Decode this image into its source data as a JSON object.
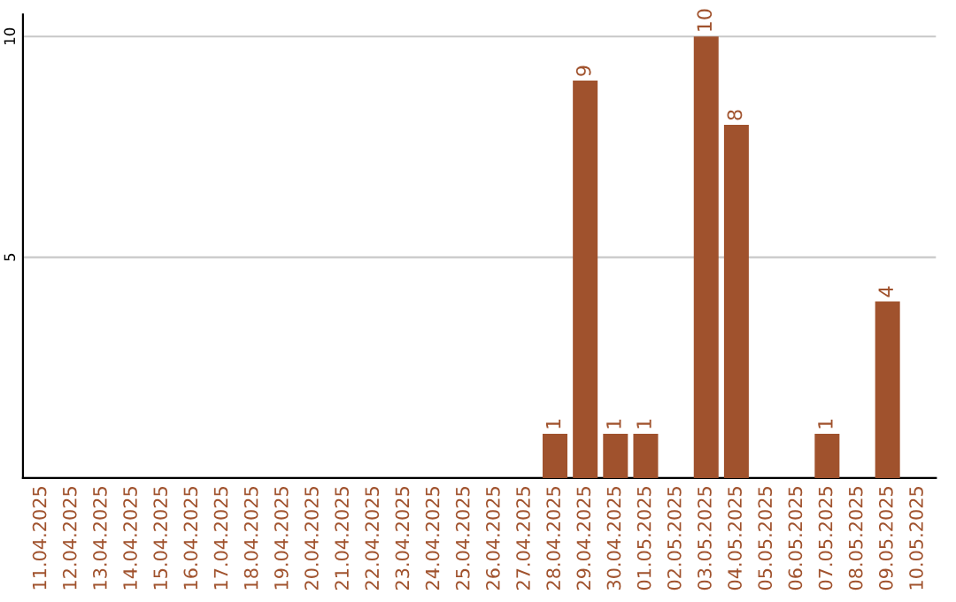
{
  "chart_data": {
    "type": "bar",
    "categories": [
      "11.04.2025",
      "12.04.2025",
      "13.04.2025",
      "14.04.2025",
      "15.04.2025",
      "16.04.2025",
      "17.04.2025",
      "18.04.2025",
      "19.04.2025",
      "20.04.2025",
      "21.04.2025",
      "22.04.2025",
      "23.04.2025",
      "24.04.2025",
      "25.04.2025",
      "26.04.2025",
      "27.04.2025",
      "28.04.2025",
      "29.04.2025",
      "30.04.2025",
      "01.05.2025",
      "02.05.2025",
      "03.05.2025",
      "04.05.2025",
      "05.05.2025",
      "06.05.2025",
      "07.05.2025",
      "08.05.2025",
      "09.05.2025",
      "10.05.2025"
    ],
    "values": [
      0,
      0,
      0,
      0,
      0,
      0,
      0,
      0,
      0,
      0,
      0,
      0,
      0,
      0,
      0,
      0,
      0,
      1,
      9,
      1,
      1,
      0,
      10,
      8,
      0,
      0,
      1,
      0,
      4,
      0
    ],
    "value_labels": [
      null,
      null,
      null,
      null,
      null,
      null,
      null,
      null,
      null,
      null,
      null,
      null,
      null,
      null,
      null,
      null,
      null,
      "1",
      "9",
      "1",
      "1",
      null,
      "10",
      "8",
      null,
      null,
      "1",
      null,
      "4",
      null
    ],
    "color": "#a0522d",
    "ylim": [
      0,
      10.5
    ],
    "yticks": [
      5,
      10
    ],
    "grid": "y"
  }
}
